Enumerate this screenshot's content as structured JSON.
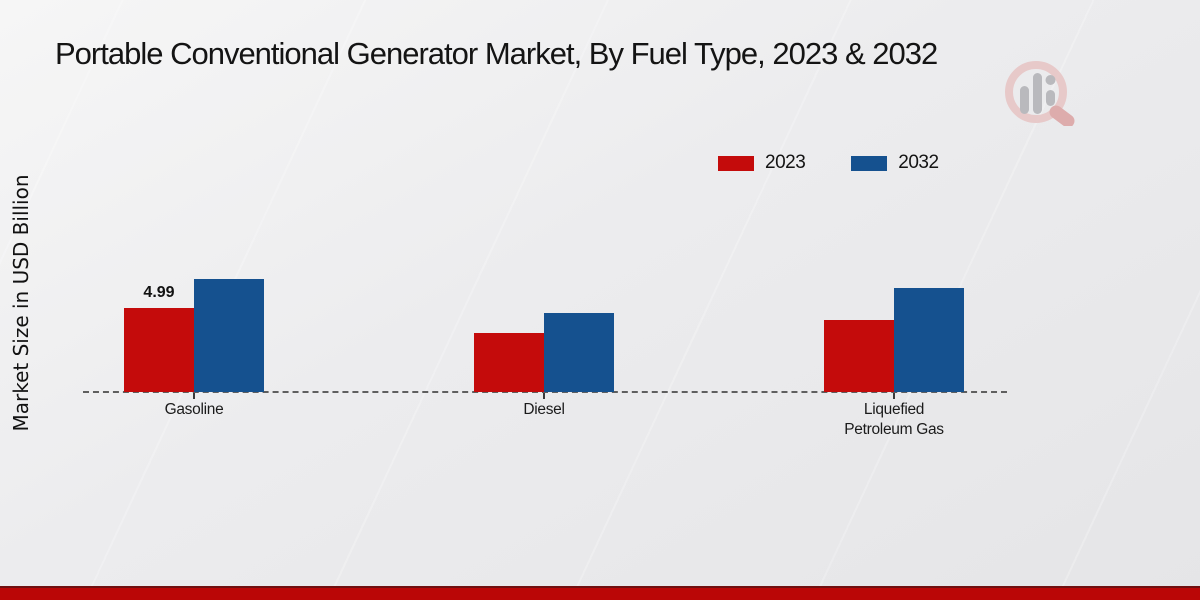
{
  "page": {
    "title": "Portable Conventional Generator Market, By Fuel Type, 2023 & 2032"
  },
  "chart_data": {
    "type": "bar",
    "title": "Portable Conventional Generator Market, By Fuel Type, 2023 & 2032",
    "xlabel": "",
    "ylabel": "Market Size in USD Billion",
    "categories": [
      "Gasoline",
      "Diesel",
      "Liquefied Petroleum Gas"
    ],
    "series": [
      {
        "name": "2023",
        "color": "#c40b0b",
        "values": [
          4.99,
          3.5,
          4.3
        ]
      },
      {
        "name": "2032",
        "color": "#15518f",
        "values": [
          6.7,
          4.7,
          6.2
        ]
      }
    ],
    "annotations": [
      {
        "series": 0,
        "category": 0,
        "text": "4.99"
      }
    ],
    "ylim": [
      0,
      7.5
    ],
    "grid": "dashed zero baseline only",
    "legend_position": "top-right",
    "legend_labels": [
      "2023",
      "2032"
    ]
  },
  "watermark": {
    "name": "market-research-logo",
    "ring_color": "#e7c6c6",
    "bar_color": "#b4b4b8",
    "handle_color": "#dca6a6"
  },
  "footer": {
    "bar_color": "#ba0606"
  }
}
